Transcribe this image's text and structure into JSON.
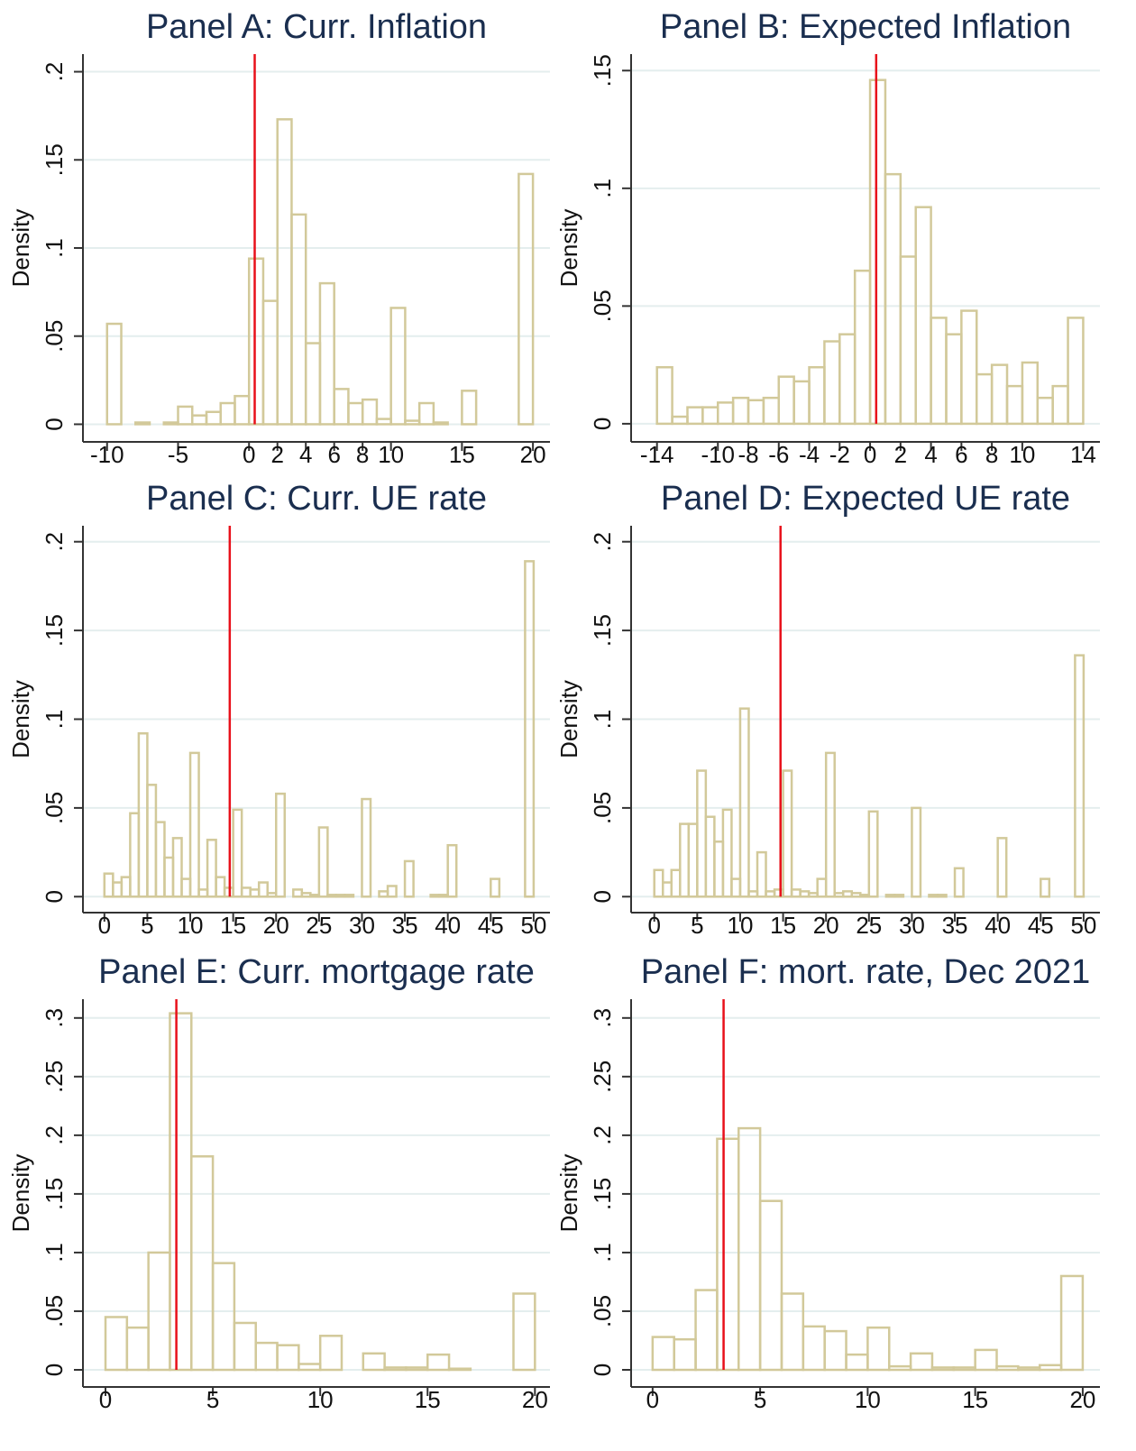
{
  "chart_data": [
    {
      "type": "histogram",
      "title": "Panel A: Curr. Inflation",
      "y_label": "Density",
      "bar_color": "#d2c99a",
      "vline": 0.4,
      "vline_color": "#e8101a",
      "grid": true,
      "bins": [
        -10,
        -9,
        -8,
        -7,
        -6,
        -5,
        -4,
        -3,
        -2,
        -1,
        0,
        1,
        2,
        3,
        4,
        5,
        6,
        7,
        8,
        9,
        10,
        11,
        12,
        13,
        14,
        15,
        16,
        17,
        18,
        19,
        20
      ],
      "values": [
        0.057,
        0,
        0.001,
        0,
        0.001,
        0.01,
        0.005,
        0.007,
        0.012,
        0.016,
        0.094,
        0.07,
        0.173,
        0.119,
        0.046,
        0.08,
        0.02,
        0.012,
        0.014,
        0.003,
        0.066,
        0.002,
        0.012,
        0.001,
        0,
        0.019,
        0,
        0,
        0,
        0.142
      ],
      "xlim": [
        -11.7,
        21.2
      ],
      "xticks": [
        -10,
        -5,
        0,
        2,
        4,
        6,
        8,
        10,
        15,
        20
      ],
      "ylim": [
        -0.01,
        0.21
      ],
      "yticks": [
        0,
        {
          "value": 0.05,
          "label": ".05"
        },
        {
          "value": 0.1,
          "label": ".1"
        },
        {
          "value": 0.15,
          "label": ".15"
        },
        {
          "value": 0.2,
          "label": ".2"
        }
      ]
    },
    {
      "type": "histogram",
      "title": "Panel B: Expected Inflation",
      "y_label": "Density",
      "bar_color": "#d2c99a",
      "vline": 0.4,
      "vline_color": "#e8101a",
      "grid": true,
      "bins": [
        -14,
        -13,
        -12,
        -11,
        -10,
        -9,
        -8,
        -7,
        -6,
        -5,
        -4,
        -3,
        -2,
        -1,
        0,
        1,
        2,
        3,
        4,
        5,
        6,
        7,
        8,
        9,
        10,
        11,
        12,
        13,
        14
      ],
      "values": [
        0.024,
        0.003,
        0.007,
        0.007,
        0.009,
        0.011,
        0.01,
        0.011,
        0.02,
        0.018,
        0.024,
        0.035,
        0.038,
        0.065,
        0.146,
        0.106,
        0.071,
        0.092,
        0.045,
        0.038,
        0.048,
        0.021,
        0.025,
        0.016,
        0.026,
        0.011,
        0.016,
        0.045
      ],
      "xlim": [
        -15.7,
        15.1
      ],
      "xticks": [
        -14,
        -10,
        -8,
        -6,
        -4,
        -2,
        0,
        2,
        4,
        6,
        8,
        10,
        14
      ],
      "ylim": [
        -0.0077,
        0.157
      ],
      "yticks": [
        0,
        {
          "value": 0.05,
          "label": ".05"
        },
        {
          "value": 0.1,
          "label": ".1"
        },
        {
          "value": 0.15,
          "label": ".15"
        }
      ]
    },
    {
      "type": "histogram",
      "title": "Panel C: Curr. UE rate",
      "y_label": "Density",
      "bar_color": "#d2c99a",
      "vline": 14.6,
      "vline_color": "#e8101a",
      "grid": true,
      "bins": [
        0,
        1,
        2,
        3,
        4,
        5,
        6,
        7,
        8,
        9,
        10,
        11,
        12,
        13,
        14,
        15,
        16,
        17,
        18,
        19,
        20,
        21,
        22,
        23,
        24,
        25,
        26,
        27,
        28,
        29,
        30,
        31,
        32,
        33,
        34,
        35,
        36,
        37,
        38,
        39,
        40,
        41,
        42,
        43,
        44,
        45,
        46,
        47,
        48,
        49,
        50
      ],
      "values": [
        0.013,
        0.008,
        0.011,
        0.047,
        0.092,
        0.063,
        0.042,
        0.022,
        0.033,
        0.01,
        0.081,
        0.004,
        0.032,
        0.011,
        0.005,
        0.049,
        0.005,
        0.004,
        0.008,
        0.002,
        0.058,
        0,
        0.004,
        0.002,
        0.001,
        0.039,
        0.001,
        0.001,
        0.001,
        0,
        0.055,
        0,
        0.003,
        0.006,
        0,
        0.02,
        0,
        0,
        0.001,
        0.001,
        0.029,
        0,
        0,
        0,
        0,
        0.01,
        0,
        0,
        0,
        0.189
      ],
      "xlim": [
        -2.5,
        51.9
      ],
      "xticks": [
        0,
        5,
        10,
        15,
        20,
        25,
        30,
        35,
        40,
        45,
        50
      ],
      "ylim": [
        -0.009,
        0.209
      ],
      "yticks": [
        0,
        {
          "value": 0.05,
          "label": ".05"
        },
        {
          "value": 0.1,
          "label": ".1"
        },
        {
          "value": 0.15,
          "label": ".15"
        },
        {
          "value": 0.2,
          "label": ".2"
        }
      ]
    },
    {
      "type": "histogram",
      "title": "Panel D: Expected UE rate",
      "y_label": "Density",
      "bar_color": "#d2c99a",
      "vline": 14.7,
      "vline_color": "#e8101a",
      "grid": true,
      "bins": [
        0,
        1,
        2,
        3,
        4,
        5,
        6,
        7,
        8,
        9,
        10,
        11,
        12,
        13,
        14,
        15,
        16,
        17,
        18,
        19,
        20,
        21,
        22,
        23,
        24,
        25,
        26,
        27,
        28,
        29,
        30,
        31,
        32,
        33,
        34,
        35,
        36,
        37,
        38,
        39,
        40,
        41,
        42,
        43,
        44,
        45,
        46,
        47,
        48,
        49,
        50
      ],
      "values": [
        0.015,
        0.008,
        0.015,
        0.041,
        0.041,
        0.071,
        0.045,
        0.031,
        0.049,
        0.01,
        0.106,
        0.003,
        0.025,
        0.003,
        0.004,
        0.071,
        0.004,
        0.003,
        0.002,
        0.01,
        0.081,
        0.002,
        0.003,
        0.002,
        0.001,
        0.048,
        0,
        0.001,
        0.001,
        0,
        0.05,
        0,
        0.001,
        0.001,
        0,
        0.016,
        0,
        0,
        0,
        0,
        0.033,
        0,
        0,
        0,
        0,
        0.01,
        0,
        0,
        0,
        0.136
      ],
      "xlim": [
        -2.7,
        51.9
      ],
      "xticks": [
        0,
        5,
        10,
        15,
        20,
        25,
        30,
        35,
        40,
        45,
        50
      ],
      "ylim": [
        -0.009,
        0.209
      ],
      "yticks": [
        0,
        {
          "value": 0.05,
          "label": ".05"
        },
        {
          "value": 0.1,
          "label": ".1"
        },
        {
          "value": 0.15,
          "label": ".15"
        },
        {
          "value": 0.2,
          "label": ".2"
        }
      ]
    },
    {
      "type": "histogram",
      "title": "Panel E: Curr. mortgage rate",
      "y_label": "Density",
      "bar_color": "#d2c99a",
      "vline": 3.3,
      "vline_color": "#e8101a",
      "grid": true,
      "bins": [
        0,
        1,
        2,
        3,
        4,
        5,
        6,
        7,
        8,
        9,
        10,
        11,
        12,
        13,
        14,
        15,
        16,
        17,
        18,
        19,
        20
      ],
      "values": [
        0.045,
        0.036,
        0.1,
        0.304,
        0.182,
        0.091,
        0.04,
        0.023,
        0.021,
        0.005,
        0.029,
        0,
        0.014,
        0.002,
        0.002,
        0.013,
        0.001,
        0,
        0,
        0.065
      ],
      "xlim": [
        -1.05,
        20.7
      ],
      "xticks": [
        0,
        5,
        10,
        15,
        20
      ],
      "ylim": [
        -0.0146,
        0.316
      ],
      "yticks": [
        0,
        {
          "value": 0.05,
          "label": ".05"
        },
        {
          "value": 0.1,
          "label": ".1"
        },
        {
          "value": 0.15,
          "label": ".15"
        },
        {
          "value": 0.2,
          "label": ".2"
        },
        {
          "value": 0.25,
          "label": ".25"
        },
        {
          "value": 0.3,
          "label": ".3"
        }
      ]
    },
    {
      "type": "histogram",
      "title": "Panel F: mort. rate, Dec 2021",
      "y_label": "Density",
      "bar_color": "#d2c99a",
      "vline": 3.3,
      "vline_color": "#e8101a",
      "grid": true,
      "bins": [
        0,
        1,
        2,
        3,
        4,
        5,
        6,
        7,
        8,
        9,
        10,
        11,
        12,
        13,
        14,
        15,
        16,
        17,
        18,
        19,
        20
      ],
      "values": [
        0.028,
        0.026,
        0.068,
        0.197,
        0.206,
        0.144,
        0.065,
        0.037,
        0.033,
        0.013,
        0.036,
        0.003,
        0.014,
        0.002,
        0.002,
        0.017,
        0.003,
        0.002,
        0.004,
        0.08
      ],
      "xlim": [
        -1.0,
        20.8
      ],
      "xticks": [
        0,
        5,
        10,
        15,
        20
      ],
      "ylim": [
        -0.0146,
        0.316
      ],
      "yticks": [
        0,
        {
          "value": 0.05,
          "label": ".05"
        },
        {
          "value": 0.1,
          "label": ".1"
        },
        {
          "value": 0.15,
          "label": ".15"
        },
        {
          "value": 0.2,
          "label": ".2"
        },
        {
          "value": 0.25,
          "label": ".25"
        },
        {
          "value": 0.3,
          "label": ".3"
        }
      ]
    }
  ]
}
